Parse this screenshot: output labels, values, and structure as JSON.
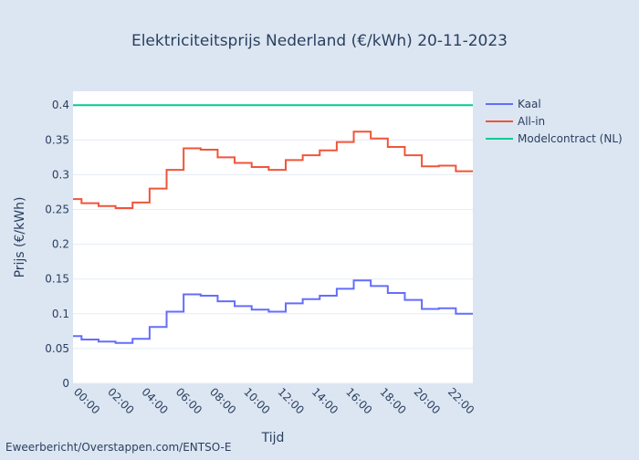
{
  "chart_data": {
    "type": "line",
    "line_shape": "step",
    "title": "Elektriciteitsprijs Nederland (€/kWh) 20-11-2023",
    "xlabel": "Tijd",
    "ylabel": "Prijs (€/kWh)",
    "ylim": [
      0,
      0.42
    ],
    "yticks": [
      0,
      0.05,
      0.1,
      0.15,
      0.2,
      0.25,
      0.3,
      0.35,
      0.4
    ],
    "ytick_labels": [
      "0",
      "0.05",
      "0.1",
      "0.15",
      "0.2",
      "0.25",
      "0.3",
      "0.35",
      "0.4"
    ],
    "x_hours": [
      0,
      1,
      2,
      3,
      4,
      5,
      6,
      7,
      8,
      9,
      10,
      11,
      12,
      13,
      14,
      15,
      16,
      17,
      18,
      19,
      20,
      21,
      22,
      23
    ],
    "xtick_hours": [
      0,
      2,
      4,
      6,
      8,
      10,
      12,
      14,
      16,
      18,
      20,
      22
    ],
    "xtick_labels": [
      "00:00",
      "02:00",
      "04:00",
      "06:00",
      "08:00",
      "10:00",
      "12:00",
      "14:00",
      "16:00",
      "18:00",
      "20:00",
      "22:00"
    ],
    "grid": true,
    "legend_position": "right",
    "series": [
      {
        "name": "Kaal",
        "color": "#636efa",
        "values": [
          0.068,
          0.063,
          0.06,
          0.058,
          0.064,
          0.081,
          0.103,
          0.128,
          0.126,
          0.118,
          0.111,
          0.106,
          0.103,
          0.115,
          0.121,
          0.126,
          0.136,
          0.148,
          0.14,
          0.13,
          0.12,
          0.107,
          0.108,
          0.1
        ]
      },
      {
        "name": "All-in",
        "color": "#ef553b",
        "values": [
          0.265,
          0.259,
          0.255,
          0.252,
          0.26,
          0.28,
          0.307,
          0.338,
          0.336,
          0.325,
          0.317,
          0.311,
          0.307,
          0.321,
          0.328,
          0.335,
          0.347,
          0.362,
          0.352,
          0.34,
          0.328,
          0.312,
          0.313,
          0.305
        ]
      },
      {
        "name": "Modelcontract (NL)",
        "color": "#00cc96",
        "values": [
          0.4,
          0.4,
          0.4,
          0.4,
          0.4,
          0.4,
          0.4,
          0.4,
          0.4,
          0.4,
          0.4,
          0.4,
          0.4,
          0.4,
          0.4,
          0.4,
          0.4,
          0.4,
          0.4,
          0.4,
          0.4,
          0.4,
          0.4,
          0.4
        ]
      }
    ],
    "source_note": "Eweerbericht/Overstappen.com/ENTSO-E"
  }
}
